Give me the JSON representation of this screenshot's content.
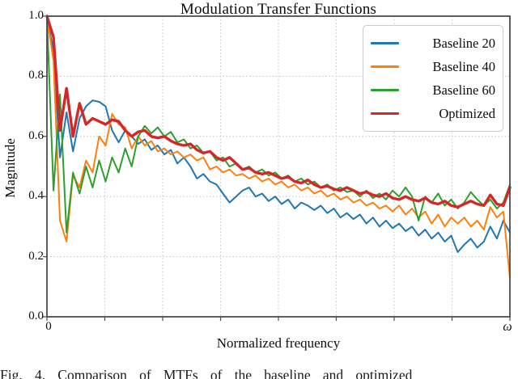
{
  "chart_data": {
    "type": "line",
    "title": "Modulation Transfer Functions",
    "xlabel": "Normalized frequency",
    "ylabel": "Magnitude",
    "x_tick_labels": [
      "0",
      "ω"
    ],
    "y_tick_labels": [
      "1.0",
      "0.8",
      "0.6",
      "0.4",
      "0.2",
      "0.0"
    ],
    "xlim": [
      0,
      1
    ],
    "ylim": [
      0.0,
      1.0
    ],
    "grid": "dotted",
    "x_gridline_count": 7,
    "legend_position": "upper-right",
    "x": [
      0,
      0.0141,
      0.0282,
      0.0423,
      0.0563,
      0.0704,
      0.0845,
      0.0986,
      0.1127,
      0.1268,
      0.1408,
      0.1549,
      0.169,
      0.1831,
      0.1972,
      0.2113,
      0.2254,
      0.2394,
      0.2535,
      0.2676,
      0.2817,
      0.2958,
      0.3099,
      0.3239,
      0.338,
      0.3521,
      0.3662,
      0.3803,
      0.3944,
      0.4085,
      0.4225,
      0.4366,
      0.4507,
      0.4648,
      0.4789,
      0.493,
      0.507,
      0.5211,
      0.5352,
      0.5493,
      0.5634,
      0.5775,
      0.5915,
      0.6056,
      0.6197,
      0.6338,
      0.6479,
      0.662,
      0.6761,
      0.6901,
      0.7042,
      0.7183,
      0.7324,
      0.7465,
      0.7606,
      0.7746,
      0.7887,
      0.8028,
      0.8169,
      0.831,
      0.8451,
      0.8592,
      0.8732,
      0.8873,
      0.9014,
      0.9155,
      0.9296,
      0.9437,
      0.9577,
      0.9718,
      0.9859,
      1.0
    ],
    "series": [
      {
        "name": "Baseline 20",
        "color": "#1f77b4",
        "width": 2,
        "values": [
          1.0,
          0.88,
          0.53,
          0.68,
          0.55,
          0.66,
          0.7,
          0.72,
          0.715,
          0.7,
          0.62,
          0.58,
          0.62,
          0.6,
          0.575,
          0.59,
          0.555,
          0.57,
          0.54,
          0.555,
          0.51,
          0.53,
          0.5,
          0.46,
          0.475,
          0.45,
          0.44,
          0.41,
          0.38,
          0.4,
          0.42,
          0.43,
          0.4,
          0.41,
          0.385,
          0.4,
          0.375,
          0.39,
          0.36,
          0.38,
          0.37,
          0.355,
          0.37,
          0.345,
          0.36,
          0.33,
          0.345,
          0.325,
          0.34,
          0.31,
          0.33,
          0.3,
          0.32,
          0.295,
          0.31,
          0.285,
          0.3,
          0.27,
          0.29,
          0.26,
          0.28,
          0.25,
          0.27,
          0.215,
          0.24,
          0.26,
          0.23,
          0.25,
          0.3,
          0.26,
          0.32,
          0.28
        ]
      },
      {
        "name": "Baseline 40",
        "color": "#ff7f0e",
        "width": 2,
        "values": [
          1.0,
          0.85,
          0.32,
          0.25,
          0.47,
          0.43,
          0.52,
          0.48,
          0.6,
          0.57,
          0.675,
          0.64,
          0.63,
          0.56,
          0.6,
          0.57,
          0.585,
          0.55,
          0.56,
          0.54,
          0.55,
          0.53,
          0.54,
          0.52,
          0.53,
          0.49,
          0.5,
          0.48,
          0.49,
          0.47,
          0.475,
          0.46,
          0.47,
          0.45,
          0.46,
          0.44,
          0.45,
          0.43,
          0.44,
          0.42,
          0.43,
          0.41,
          0.42,
          0.4,
          0.41,
          0.39,
          0.4,
          0.38,
          0.39,
          0.37,
          0.38,
          0.36,
          0.37,
          0.35,
          0.37,
          0.34,
          0.36,
          0.33,
          0.35,
          0.31,
          0.34,
          0.3,
          0.33,
          0.31,
          0.33,
          0.3,
          0.32,
          0.29,
          0.365,
          0.33,
          0.35,
          0.13
        ]
      },
      {
        "name": "Baseline 60",
        "color": "#2ca02c",
        "width": 2,
        "values": [
          1.0,
          0.42,
          0.74,
          0.28,
          0.48,
          0.41,
          0.5,
          0.43,
          0.52,
          0.45,
          0.53,
          0.48,
          0.56,
          0.5,
          0.6,
          0.635,
          0.61,
          0.63,
          0.6,
          0.615,
          0.58,
          0.59,
          0.56,
          0.57,
          0.545,
          0.55,
          0.52,
          0.53,
          0.5,
          0.51,
          0.49,
          0.5,
          0.48,
          0.49,
          0.47,
          0.48,
          0.46,
          0.47,
          0.45,
          0.46,
          0.44,
          0.45,
          0.43,
          0.44,
          0.42,
          0.43,
          0.415,
          0.42,
          0.4,
          0.42,
          0.395,
          0.41,
          0.39,
          0.42,
          0.4,
          0.43,
          0.4,
          0.32,
          0.4,
          0.38,
          0.41,
          0.37,
          0.39,
          0.36,
          0.38,
          0.415,
          0.39,
          0.37,
          0.39,
          0.36,
          0.38,
          0.44
        ]
      },
      {
        "name": "Optimized",
        "color": "#d62728",
        "width": 3.4,
        "values": [
          1.0,
          0.93,
          0.62,
          0.76,
          0.6,
          0.71,
          0.64,
          0.66,
          0.65,
          0.64,
          0.655,
          0.65,
          0.62,
          0.6,
          0.615,
          0.62,
          0.6,
          0.595,
          0.6,
          0.585,
          0.575,
          0.57,
          0.575,
          0.555,
          0.545,
          0.55,
          0.53,
          0.52,
          0.53,
          0.51,
          0.49,
          0.495,
          0.48,
          0.475,
          0.48,
          0.47,
          0.46,
          0.465,
          0.45,
          0.445,
          0.455,
          0.44,
          0.43,
          0.435,
          0.425,
          0.42,
          0.43,
          0.42,
          0.41,
          0.415,
          0.405,
          0.4,
          0.41,
          0.395,
          0.39,
          0.4,
          0.39,
          0.385,
          0.395,
          0.38,
          0.375,
          0.385,
          0.37,
          0.365,
          0.375,
          0.385,
          0.375,
          0.37,
          0.405,
          0.375,
          0.37,
          0.43
        ]
      }
    ]
  },
  "caption": {
    "text": "Fig. 4.  Comparison of MTFs of the baseline and optimized"
  }
}
